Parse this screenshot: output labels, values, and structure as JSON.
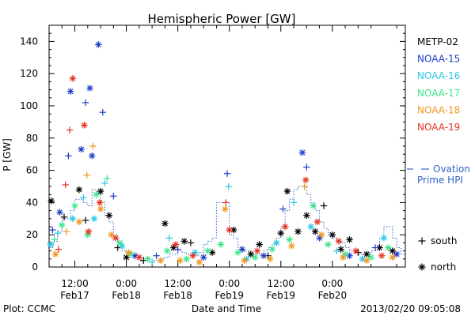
{
  "chart_data": {
    "type": "scatter",
    "title": "Hemispheric Power [GW]",
    "ylabel": "P [GW]",
    "xlabel": "Date and Time",
    "ylim": [
      0,
      150
    ],
    "yticks": [
      0,
      20,
      40,
      60,
      80,
      100,
      120,
      140
    ],
    "xlim_hours": [
      0,
      83
    ],
    "xticks": [
      {
        "hour": 6,
        "time": "12:00",
        "date": "Feb17"
      },
      {
        "hour": 18,
        "time": "0:00",
        "date": "Feb18"
      },
      {
        "hour": 30,
        "time": "12:00",
        "date": "Feb18"
      },
      {
        "hour": 42,
        "time": "0:00",
        "date": "Feb19"
      },
      {
        "hour": 54,
        "time": "12:00",
        "date": "Feb19"
      },
      {
        "hour": 66,
        "time": "0:00",
        "date": "Feb20"
      }
    ],
    "grid": false,
    "legend_position": "right",
    "series": [
      {
        "name": "METP-02",
        "color": "#000000",
        "points": [
          {
            "x": 0.5,
            "y": 41,
            "m": "*"
          },
          {
            "x": 3.5,
            "y": 31,
            "m": "+"
          },
          {
            "x": 7,
            "y": 48,
            "m": "*"
          },
          {
            "x": 8.5,
            "y": 29,
            "m": "+"
          },
          {
            "x": 12,
            "y": 47,
            "m": "*"
          },
          {
            "x": 14,
            "y": 32,
            "m": "*"
          },
          {
            "x": 16,
            "y": 12,
            "m": "+"
          },
          {
            "x": 18,
            "y": 6,
            "m": "*"
          },
          {
            "x": 22,
            "y": 4,
            "m": "+"
          },
          {
            "x": 27,
            "y": 27,
            "m": "*"
          },
          {
            "x": 29,
            "y": 12,
            "m": "*"
          },
          {
            "x": 31.5,
            "y": 16,
            "m": "*"
          },
          {
            "x": 33,
            "y": 15,
            "m": "+"
          },
          {
            "x": 38,
            "y": 9,
            "m": "*"
          },
          {
            "x": 43,
            "y": 23,
            "m": "*"
          },
          {
            "x": 47,
            "y": 8,
            "m": "*"
          },
          {
            "x": 49,
            "y": 14,
            "m": "*"
          },
          {
            "x": 51,
            "y": 7,
            "m": "+"
          },
          {
            "x": 54,
            "y": 21,
            "m": "*"
          },
          {
            "x": 55.5,
            "y": 47,
            "m": "*"
          },
          {
            "x": 58,
            "y": 22,
            "m": "*"
          },
          {
            "x": 60,
            "y": 32,
            "m": "*"
          },
          {
            "x": 62,
            "y": 22,
            "m": "*"
          },
          {
            "x": 64,
            "y": 38,
            "m": "+"
          },
          {
            "x": 66,
            "y": 20,
            "m": "*"
          },
          {
            "x": 68,
            "y": 11,
            "m": "*"
          },
          {
            "x": 70,
            "y": 17,
            "m": "*"
          },
          {
            "x": 72,
            "y": 9,
            "m": "+"
          },
          {
            "x": 74,
            "y": 8,
            "m": "*"
          },
          {
            "x": 77,
            "y": 12,
            "m": "*"
          },
          {
            "x": 80,
            "y": 10,
            "m": "*"
          }
        ]
      },
      {
        "name": "NOAA-15",
        "color": "#1e3cc8",
        "points": [
          {
            "x": 0.8,
            "y": 23,
            "m": "+"
          },
          {
            "x": 2.5,
            "y": 34,
            "m": "*"
          },
          {
            "x": 4.5,
            "y": 69,
            "m": "+"
          },
          {
            "x": 5,
            "y": 109,
            "m": "*"
          },
          {
            "x": 7.5,
            "y": 73,
            "m": "*"
          },
          {
            "x": 8.5,
            "y": 102,
            "m": "+"
          },
          {
            "x": 9.5,
            "y": 111,
            "m": "*"
          },
          {
            "x": 10,
            "y": 69,
            "m": "*"
          },
          {
            "x": 11.5,
            "y": 138,
            "m": "*"
          },
          {
            "x": 12.5,
            "y": 96,
            "m": "+"
          },
          {
            "x": 15,
            "y": 44,
            "m": "+"
          },
          {
            "x": 20,
            "y": 7,
            "m": "*"
          },
          {
            "x": 25,
            "y": 7,
            "m": "+"
          },
          {
            "x": 30,
            "y": 11,
            "m": "+"
          },
          {
            "x": 36,
            "y": 6,
            "m": "*"
          },
          {
            "x": 41.5,
            "y": 58,
            "m": "+"
          },
          {
            "x": 45,
            "y": 11,
            "m": "*"
          },
          {
            "x": 50,
            "y": 7,
            "m": "*"
          },
          {
            "x": 54.5,
            "y": 36,
            "m": "+"
          },
          {
            "x": 59,
            "y": 71,
            "m": "*"
          },
          {
            "x": 60,
            "y": 62,
            "m": "+"
          },
          {
            "x": 63,
            "y": 18,
            "m": "*"
          },
          {
            "x": 70,
            "y": 7,
            "m": "*"
          },
          {
            "x": 76,
            "y": 12,
            "m": "+"
          },
          {
            "x": 81,
            "y": 8,
            "m": "*"
          }
        ]
      },
      {
        "name": "NOAA-16",
        "color": "#28c8e6",
        "points": [
          {
            "x": 0.3,
            "y": 14,
            "m": "*"
          },
          {
            "x": 2,
            "y": 21,
            "m": "+"
          },
          {
            "x": 5.5,
            "y": 30,
            "m": "*"
          },
          {
            "x": 8,
            "y": 43,
            "m": "+"
          },
          {
            "x": 10.5,
            "y": 30,
            "m": "*"
          },
          {
            "x": 13,
            "y": 52,
            "m": "+"
          },
          {
            "x": 17,
            "y": 13,
            "m": "*"
          },
          {
            "x": 24,
            "y": 3,
            "m": "+"
          },
          {
            "x": 28,
            "y": 18,
            "m": "+"
          },
          {
            "x": 34,
            "y": 9,
            "m": "*"
          },
          {
            "x": 41.8,
            "y": 50,
            "m": "+"
          },
          {
            "x": 46,
            "y": 5,
            "m": "*"
          },
          {
            "x": 53,
            "y": 15,
            "m": "*"
          },
          {
            "x": 57,
            "y": 40,
            "m": "+"
          },
          {
            "x": 61,
            "y": 25,
            "m": "*"
          },
          {
            "x": 67,
            "y": 10,
            "m": "+"
          },
          {
            "x": 73,
            "y": 5,
            "m": "*"
          },
          {
            "x": 78,
            "y": 18,
            "m": "*"
          }
        ]
      },
      {
        "name": "NOAA-17",
        "color": "#3ce68c",
        "points": [
          {
            "x": 1.2,
            "y": 17,
            "m": "+"
          },
          {
            "x": 3,
            "y": 26,
            "m": "*"
          },
          {
            "x": 6,
            "y": 38,
            "m": "*"
          },
          {
            "x": 9,
            "y": 20,
            "m": "*"
          },
          {
            "x": 11,
            "y": 45,
            "m": "*"
          },
          {
            "x": 13.5,
            "y": 55,
            "m": "+"
          },
          {
            "x": 16.5,
            "y": 15,
            "m": "*"
          },
          {
            "x": 19,
            "y": 8,
            "m": "*"
          },
          {
            "x": 23,
            "y": 5,
            "m": "*"
          },
          {
            "x": 27.5,
            "y": 10,
            "m": "*"
          },
          {
            "x": 32,
            "y": 5,
            "m": "*"
          },
          {
            "x": 37,
            "y": 10,
            "m": "*"
          },
          {
            "x": 40,
            "y": 14,
            "m": "*"
          },
          {
            "x": 44,
            "y": 9,
            "m": "*"
          },
          {
            "x": 48,
            "y": 6,
            "m": "*"
          },
          {
            "x": 52,
            "y": 11,
            "m": "*"
          },
          {
            "x": 56,
            "y": 17,
            "m": "*"
          },
          {
            "x": 61.5,
            "y": 38,
            "m": "*"
          },
          {
            "x": 65,
            "y": 14,
            "m": "*"
          },
          {
            "x": 69,
            "y": 8,
            "m": "*"
          },
          {
            "x": 75,
            "y": 6,
            "m": "*"
          },
          {
            "x": 79,
            "y": 12,
            "m": "*"
          }
        ]
      },
      {
        "name": "NOAA-18",
        "color": "#f0961e",
        "points": [
          {
            "x": 1.5,
            "y": 8,
            "m": "*"
          },
          {
            "x": 4,
            "y": 22,
            "m": "+"
          },
          {
            "x": 7,
            "y": 28,
            "m": "*"
          },
          {
            "x": 8.8,
            "y": 57,
            "m": "+"
          },
          {
            "x": 10.2,
            "y": 75,
            "m": "+"
          },
          {
            "x": 12,
            "y": 36,
            "m": "*"
          },
          {
            "x": 14.5,
            "y": 20,
            "m": "*"
          },
          {
            "x": 18.5,
            "y": 9,
            "m": "*"
          },
          {
            "x": 26,
            "y": 4,
            "m": "*"
          },
          {
            "x": 30.5,
            "y": 4,
            "m": "*"
          },
          {
            "x": 35,
            "y": 3,
            "m": "*"
          },
          {
            "x": 41,
            "y": 36,
            "m": "*"
          },
          {
            "x": 45.5,
            "y": 4,
            "m": "*"
          },
          {
            "x": 51.5,
            "y": 5,
            "m": "*"
          },
          {
            "x": 56.5,
            "y": 13,
            "m": "*"
          },
          {
            "x": 59.5,
            "y": 50,
            "m": "+"
          },
          {
            "x": 63.5,
            "y": 20,
            "m": "*"
          },
          {
            "x": 68.5,
            "y": 6,
            "m": "*"
          },
          {
            "x": 74,
            "y": 4,
            "m": "*"
          },
          {
            "x": 80,
            "y": 6,
            "m": "*"
          }
        ]
      },
      {
        "name": "NOAA-19",
        "color": "#e6321e",
        "points": [
          {
            "x": 2.2,
            "y": 11,
            "m": "+"
          },
          {
            "x": 3.8,
            "y": 51,
            "m": "+"
          },
          {
            "x": 4.8,
            "y": 85,
            "m": "+"
          },
          {
            "x": 5.5,
            "y": 117,
            "m": "*"
          },
          {
            "x": 8.2,
            "y": 88,
            "m": "*"
          },
          {
            "x": 9.2,
            "y": 22,
            "m": "*"
          },
          {
            "x": 11.8,
            "y": 40,
            "m": "*"
          },
          {
            "x": 15.5,
            "y": 18,
            "m": "*"
          },
          {
            "x": 21,
            "y": 6,
            "m": "*"
          },
          {
            "x": 29.5,
            "y": 14,
            "m": "*"
          },
          {
            "x": 33.5,
            "y": 7,
            "m": "*"
          },
          {
            "x": 41.2,
            "y": 40,
            "m": "+"
          },
          {
            "x": 42,
            "y": 23,
            "m": "*"
          },
          {
            "x": 48.5,
            "y": 10,
            "m": "*"
          },
          {
            "x": 55,
            "y": 25,
            "m": "*"
          },
          {
            "x": 59.8,
            "y": 54,
            "m": "*"
          },
          {
            "x": 62.5,
            "y": 28,
            "m": "*"
          },
          {
            "x": 67.5,
            "y": 16,
            "m": "*"
          },
          {
            "x": 71.5,
            "y": 10,
            "m": "*"
          },
          {
            "x": 77.5,
            "y": 7,
            "m": "*"
          }
        ]
      }
    ],
    "ovation": {
      "name": "Ovation Prime HPI",
      "legend_label": "Ovation",
      "legend_label2": "Prime HPI",
      "color": "#3264c8",
      "step_y": [
        12,
        16,
        22,
        30,
        30,
        35,
        42,
        42,
        40,
        38,
        48,
        46,
        40,
        32,
        28,
        20,
        15,
        10,
        8,
        7,
        6,
        6,
        5,
        5,
        4,
        4,
        5,
        6,
        8,
        8,
        10,
        9,
        8,
        8,
        7,
        9,
        14,
        16,
        18,
        40,
        40,
        40,
        20,
        18,
        12,
        10,
        10,
        8,
        8,
        8,
        10,
        12,
        14,
        18,
        25,
        35,
        42,
        48,
        50,
        50,
        45,
        40,
        35,
        28,
        24,
        20,
        18,
        16,
        15,
        12,
        10,
        10,
        8,
        8,
        8,
        10,
        12,
        18,
        25,
        25,
        18,
        12,
        8,
        8
      ]
    },
    "marker_legend": {
      "south": "south",
      "north": "north"
    },
    "footer": {
      "left": "Plot: CCMC",
      "right": "2013/02/20 09:05:08"
    }
  }
}
